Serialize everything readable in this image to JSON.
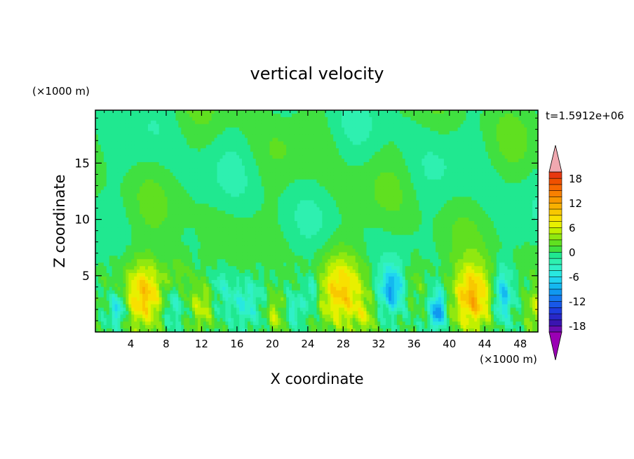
{
  "chart_data": {
    "type": "heatmap",
    "title": "vertical velocity",
    "xlabel": "X coordinate",
    "ylabel": "Z coordinate",
    "x_unit": "(×1000 m)",
    "y_unit": "(×1000 m)",
    "time_label": "t=1.5912e+06",
    "xlim": [
      0,
      50
    ],
    "ylim": [
      0,
      19.7
    ],
    "x_ticks": [
      4,
      8,
      12,
      16,
      20,
      24,
      28,
      32,
      36,
      40,
      44,
      48
    ],
    "y_ticks": [
      5,
      10,
      15
    ],
    "colorbar": {
      "levels": [
        -21,
        -19.5,
        -18,
        -16.5,
        -15,
        -13.5,
        -12,
        -10.5,
        -9,
        -7.5,
        -6,
        -4.5,
        -3,
        -1.5,
        0,
        1.5,
        3,
        4.5,
        6,
        7.5,
        9,
        10.5,
        12,
        13.5,
        15,
        16.5,
        18,
        19.5,
        21
      ],
      "tick_labels": [
        "18",
        "12",
        "6",
        "0",
        "-6",
        "-12",
        "-18"
      ],
      "tick_values": [
        18,
        12,
        6,
        0,
        -6,
        -12,
        -18
      ],
      "extend": "both",
      "colors": [
        "#9a00b4",
        "#6a0cb0",
        "#3a14b0",
        "#2828c8",
        "#1e3cde",
        "#1858e8",
        "#1478f0",
        "#1098f0",
        "#14b8f0",
        "#20d4f0",
        "#28e8e0",
        "#30f0c8",
        "#2ef0b0",
        "#20e890",
        "#40e040",
        "#60e020",
        "#90e810",
        "#c0f000",
        "#e8f000",
        "#f8e000",
        "#f8c800",
        "#f8b000",
        "#f89800",
        "#f88000",
        "#f86800",
        "#f05000",
        "#e83810",
        "#e82020",
        "#f0a8b0"
      ]
    },
    "grid": false,
    "note_features": {
      "updraft_cores_x": [
        5.5,
        28,
        42.5,
        12,
        20.5
      ],
      "downdraft_cores_x": [
        2.5,
        33.5,
        38.5,
        46
      ]
    }
  }
}
